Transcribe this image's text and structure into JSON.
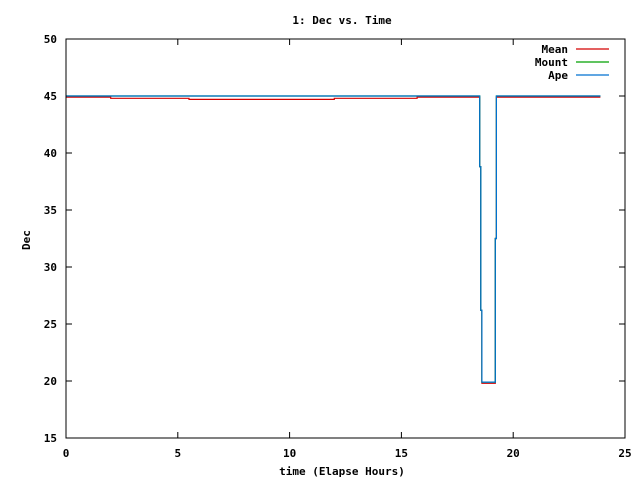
{
  "chart_data": {
    "type": "line",
    "title": "1: Dec vs. Time",
    "xlabel": "time (Elapse Hours)",
    "ylabel": "Dec",
    "xlim": [
      0,
      25
    ],
    "ylim": [
      15,
      50
    ],
    "x_ticks": [
      0,
      5,
      10,
      15,
      20,
      25
    ],
    "y_ticks": [
      15,
      20,
      25,
      30,
      35,
      40,
      45,
      50
    ],
    "grid": false,
    "legend_position": "top-right",
    "series": [
      {
        "name": "Mean",
        "color": "#d40000",
        "points": [
          [
            0.0,
            44.9
          ],
          [
            2.0,
            44.9
          ],
          [
            2.0,
            44.8
          ],
          [
            5.5,
            44.8
          ],
          [
            5.5,
            44.7
          ],
          [
            12.0,
            44.7
          ],
          [
            12.0,
            44.8
          ],
          [
            15.7,
            44.8
          ],
          [
            15.7,
            44.9
          ],
          [
            18.5,
            44.9
          ],
          [
            18.5,
            38.8
          ],
          [
            18.55,
            38.8
          ],
          [
            18.55,
            26.2
          ],
          [
            18.6,
            26.2
          ],
          [
            18.6,
            19.8
          ],
          [
            19.2,
            19.8
          ],
          [
            19.2,
            32.5
          ],
          [
            19.25,
            32.5
          ],
          [
            19.25,
            44.9
          ],
          [
            23.9,
            44.9
          ]
        ]
      },
      {
        "name": "Mount",
        "color": "#00a000",
        "points": [
          [
            0.0,
            45.0
          ],
          [
            18.5,
            45.0
          ],
          [
            18.5,
            38.8
          ],
          [
            18.55,
            38.8
          ],
          [
            18.55,
            26.2
          ],
          [
            18.6,
            26.2
          ],
          [
            18.6,
            19.9
          ],
          [
            19.2,
            19.9
          ],
          [
            19.2,
            32.5
          ],
          [
            19.25,
            32.5
          ],
          [
            19.25,
            45.0
          ],
          [
            23.9,
            45.0
          ]
        ]
      },
      {
        "name": "Ape",
        "color": "#0070d0",
        "points": [
          [
            0.0,
            45.0
          ],
          [
            18.5,
            45.0
          ],
          [
            18.5,
            38.8
          ],
          [
            18.55,
            38.8
          ],
          [
            18.55,
            26.2
          ],
          [
            18.6,
            26.2
          ],
          [
            18.6,
            19.9
          ],
          [
            19.2,
            19.9
          ],
          [
            19.2,
            32.5
          ],
          [
            19.25,
            32.5
          ],
          [
            19.25,
            45.0
          ],
          [
            23.9,
            45.0
          ]
        ]
      }
    ]
  }
}
